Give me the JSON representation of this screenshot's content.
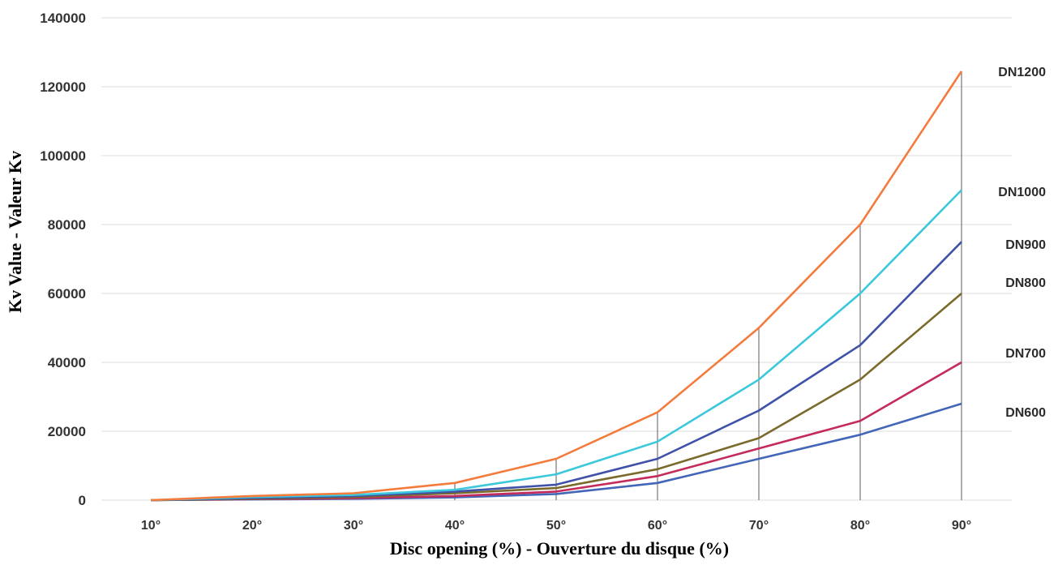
{
  "chart_data": {
    "type": "line",
    "title": "",
    "xlabel": "Disc opening (%) - Ouverture du disque (%)",
    "ylabel": "Kv Value - Valeur Kv",
    "categories": [
      "10°",
      "20°",
      "30°",
      "40°",
      "50°",
      "60°",
      "70°",
      "80°",
      "90°"
    ],
    "ylim": [
      0,
      140000
    ],
    "yticks": [
      "0",
      "20000",
      "40000",
      "60000",
      "80000",
      "100000",
      "120000",
      "140000"
    ],
    "grid": true,
    "legend": "right-end labels",
    "series": [
      {
        "name": "DN1200",
        "color": "#f47b3c",
        "values": [
          0,
          1200,
          2000,
          5000,
          12000,
          25500,
          50000,
          80000,
          124500
        ]
      },
      {
        "name": "DN1000",
        "color": "#3cc8dc",
        "values": [
          0,
          900,
          1500,
          3000,
          7500,
          17000,
          35000,
          60000,
          90000
        ]
      },
      {
        "name": "DN900",
        "color": "#3f52a8",
        "values": [
          0,
          600,
          1200,
          2500,
          4500,
          12000,
          26000,
          45000,
          75000
        ]
      },
      {
        "name": "DN800",
        "color": "#7a6a2c",
        "values": [
          0,
          400,
          900,
          2000,
          3500,
          9000,
          18000,
          35000,
          60000
        ]
      },
      {
        "name": "DN700",
        "color": "#c42a5a",
        "values": [
          0,
          300,
          600,
          1200,
          2500,
          7000,
          15000,
          23000,
          40000
        ]
      },
      {
        "name": "DN600",
        "color": "#4466b8",
        "values": [
          0,
          200,
          400,
          800,
          1800,
          5000,
          12000,
          19000,
          28000
        ]
      }
    ]
  }
}
